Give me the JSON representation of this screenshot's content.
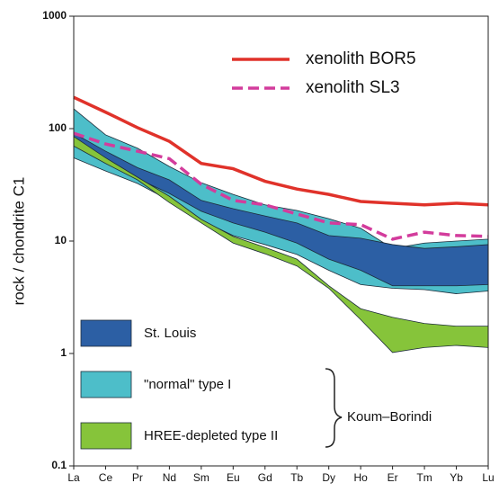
{
  "chart_data": {
    "type": "line",
    "y_label": "rock / chondrite C1",
    "categories": [
      "La",
      "Ce",
      "Pr",
      "Nd",
      "Sm",
      "Eu",
      "Gd",
      "Tb",
      "Dy",
      "Ho",
      "Er",
      "Tm",
      "Yb",
      "Lu"
    ],
    "log_scale": true,
    "ylim": [
      0.1,
      1000
    ],
    "yticks": [
      0.1,
      1,
      10,
      100,
      1000
    ],
    "areas": [
      {
        "name": "\"normal\" type I",
        "color": "#4dbec9",
        "upper": [
          150,
          88,
          67,
          46,
          33,
          26,
          21,
          18.7,
          15.8,
          13,
          8.6,
          9.6,
          10,
          10.4
        ],
        "lower": [
          55,
          42,
          32.5,
          23,
          15.3,
          11.2,
          9.3,
          7.6,
          5.5,
          4.1,
          3.8,
          3.7,
          3.4,
          3.6
        ]
      },
      {
        "name": "St. Louis",
        "color": "#2c5fa4",
        "upper": [
          91,
          63,
          45,
          35,
          23,
          19.4,
          16.7,
          14.5,
          11.2,
          10.6,
          9.3,
          8.6,
          8.9,
          9.3
        ],
        "lower": [
          73,
          51,
          36,
          26.5,
          18.4,
          14.5,
          12,
          9.6,
          6.9,
          5.5,
          4,
          4,
          4,
          4.1
        ]
      },
      {
        "name": "HREE-depleted type II",
        "color": "#86c43a",
        "upper": [
          85,
          55,
          37,
          25,
          15.6,
          11,
          8.8,
          6.9,
          4,
          2.5,
          2.1,
          1.85,
          1.75,
          1.75
        ],
        "lower": [
          70,
          49,
          35,
          22,
          14.5,
          9.6,
          7.7,
          6,
          3.8,
          2,
          1.02,
          1.13,
          1.18,
          1.13
        ]
      }
    ],
    "group_label": "Koum–Borindi",
    "series": [
      {
        "name": "xenolith BOR5",
        "color": "#e0322a",
        "dashed": false,
        "values": [
          190,
          140,
          102,
          77,
          49,
          44,
          34,
          29,
          26,
          22.5,
          21.7,
          21,
          21.7,
          21
        ]
      },
      {
        "name": "xenolith SL3",
        "color": "#d33c9c",
        "dashed": true,
        "values": [
          91,
          73,
          63,
          54,
          32,
          23,
          21,
          17.4,
          14.5,
          14,
          10.4,
          12,
          11.2,
          11
        ]
      }
    ]
  }
}
